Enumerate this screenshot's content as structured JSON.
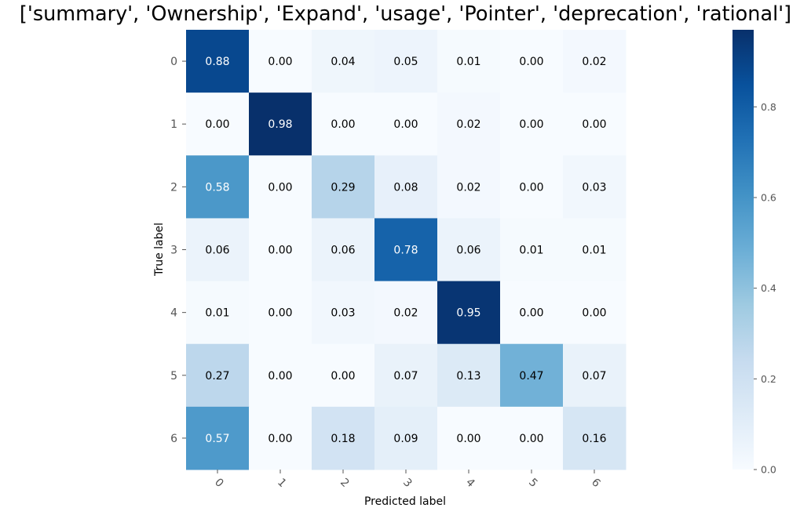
{
  "chart_data": {
    "type": "heatmap",
    "title": "['summary', 'Ownership', 'Expand', 'usage', 'Pointer', 'deprecation', 'rational']",
    "xlabel": "Predicted label",
    "ylabel": "True label",
    "x_categories": [
      "0",
      "1",
      "2",
      "3",
      "4",
      "5",
      "6"
    ],
    "y_categories": [
      "0",
      "1",
      "2",
      "3",
      "4",
      "5",
      "6"
    ],
    "values": [
      [
        0.88,
        0.0,
        0.04,
        0.05,
        0.01,
        0.0,
        0.02
      ],
      [
        0.0,
        0.98,
        0.0,
        0.0,
        0.02,
        0.0,
        0.0
      ],
      [
        0.58,
        0.0,
        0.29,
        0.08,
        0.02,
        0.0,
        0.03
      ],
      [
        0.06,
        0.0,
        0.06,
        0.78,
        0.06,
        0.01,
        0.01
      ],
      [
        0.01,
        0.0,
        0.03,
        0.02,
        0.95,
        0.0,
        0.0
      ],
      [
        0.27,
        0.0,
        0.0,
        0.07,
        0.13,
        0.47,
        0.07
      ],
      [
        0.57,
        0.0,
        0.18,
        0.09,
        0.0,
        0.0,
        0.16
      ]
    ],
    "colormap": "Blues",
    "colorbar": {
      "range": [
        0.0,
        0.97
      ],
      "ticks": [
        0.0,
        0.2,
        0.4,
        0.6,
        0.8
      ],
      "tick_labels": [
        "0.0",
        "0.2",
        "0.4",
        "0.6",
        "0.8"
      ]
    }
  }
}
